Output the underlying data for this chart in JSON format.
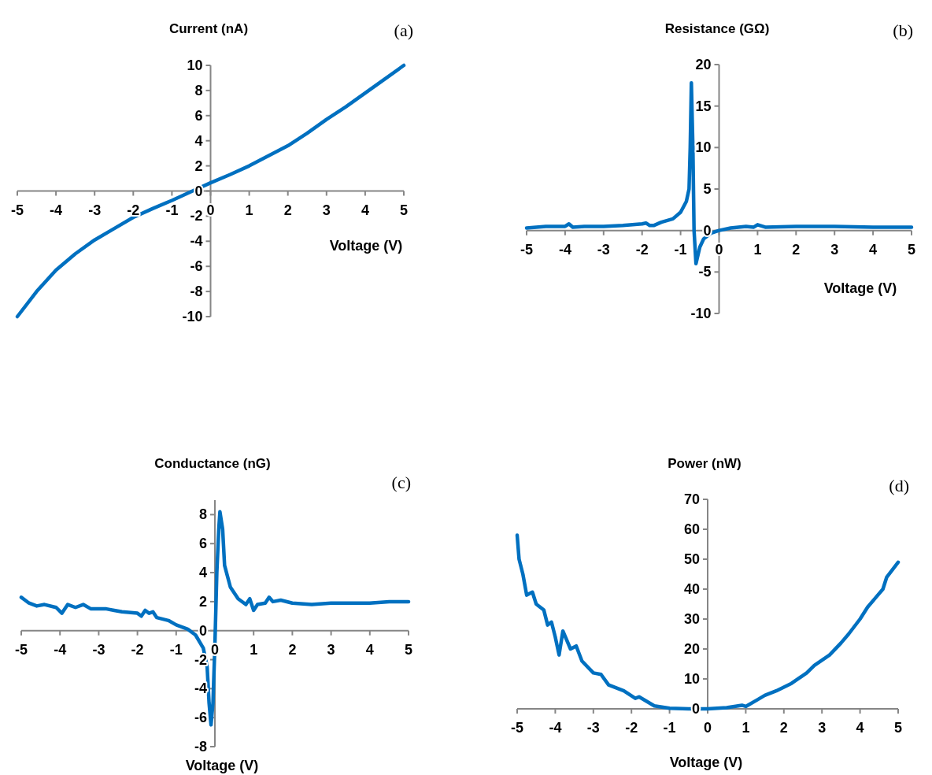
{
  "chart_data": [
    {
      "type": "line",
      "title": "Current (nA)",
      "xlabel": "Voltage (V)",
      "annotations": [
        "(a)"
      ],
      "xlim": [
        -5,
        5
      ],
      "xticks": [
        -5,
        -4,
        -3,
        -2,
        -1,
        0,
        1,
        2,
        3,
        4,
        5
      ],
      "ylim": [
        -10,
        10
      ],
      "yticks": [
        -10,
        -8,
        -6,
        -4,
        -2,
        0,
        2,
        4,
        6,
        8,
        10
      ],
      "x": [
        -5,
        -4.5,
        -4,
        -3.5,
        -3,
        -2.5,
        -2,
        -1.5,
        -1,
        -0.5,
        0,
        0.5,
        1,
        1.5,
        2,
        2.5,
        3,
        3.5,
        4,
        4.5,
        5
      ],
      "series": [
        {
          "color": "#0070c0",
          "values": [
            -10,
            -8.0,
            -6.3,
            -5.0,
            -3.9,
            -3.0,
            -2.1,
            -1.4,
            -0.75,
            -0.05,
            0.65,
            1.3,
            2.0,
            2.8,
            3.6,
            4.6,
            5.7,
            6.7,
            7.8,
            8.9,
            10
          ]
        }
      ]
    },
    {
      "type": "line",
      "title": "Resistance (GΩ)",
      "xlabel": "Voltage (V)",
      "annotations": [
        "(b)"
      ],
      "xlim": [
        -5,
        5
      ],
      "xticks": [
        -5,
        -4,
        -3,
        -2,
        -1,
        0,
        1,
        2,
        3,
        4,
        5
      ],
      "ylim": [
        -10,
        20
      ],
      "yticks": [
        -10,
        -5,
        0,
        5,
        10,
        15,
        20
      ],
      "x": [
        -5,
        -4.5,
        -4.0,
        -3.9,
        -3.8,
        -3.5,
        -3,
        -2.5,
        -2,
        -1.9,
        -1.8,
        -1.7,
        -1.5,
        -1.2,
        -1.0,
        -0.85,
        -0.78,
        -0.75,
        -0.72,
        -0.68,
        -0.65,
        -0.6,
        -0.5,
        -0.4,
        -0.2,
        0,
        0.3,
        0.7,
        0.9,
        1.0,
        1.2,
        2,
        3,
        4,
        5
      ],
      "series": [
        {
          "color": "#0070c0",
          "values": [
            0.3,
            0.5,
            0.5,
            0.8,
            0.4,
            0.5,
            0.5,
            0.6,
            0.8,
            0.9,
            0.6,
            0.6,
            1.0,
            1.4,
            2.2,
            3.5,
            5,
            10,
            17.8,
            10,
            0,
            -4.0,
            -2,
            -1.0,
            -0.3,
            0,
            0.3,
            0.5,
            0.4,
            0.7,
            0.4,
            0.5,
            0.5,
            0.4,
            0.4
          ]
        }
      ]
    },
    {
      "type": "line",
      "title": "Conductance (nG)",
      "xlabel": "Voltage (V)",
      "annotations": [
        "(c)"
      ],
      "xlim": [
        -5,
        5
      ],
      "xticks": [
        -5,
        -4,
        -3,
        -2,
        -1,
        0,
        1,
        2,
        3,
        4,
        5
      ],
      "ylim": [
        -8,
        9
      ],
      "yticks": [
        -8,
        -6,
        -4,
        -2,
        0,
        2,
        4,
        6,
        8
      ],
      "x": [
        -5,
        -4.8,
        -4.6,
        -4.4,
        -4.1,
        -3.95,
        -3.8,
        -3.6,
        -3.4,
        -3.2,
        -2.8,
        -2.6,
        -2.4,
        -2.0,
        -1.9,
        -1.8,
        -1.7,
        -1.6,
        -1.5,
        -1.2,
        -1.0,
        -0.7,
        -0.5,
        -0.3,
        -0.2,
        -0.15,
        -0.1,
        -0.05,
        0,
        0.05,
        0.1,
        0.13,
        0.2,
        0.25,
        0.4,
        0.6,
        0.8,
        0.9,
        1.0,
        1.1,
        1.3,
        1.4,
        1.5,
        1.7,
        2,
        2.5,
        3,
        3.5,
        4,
        4.5,
        5
      ],
      "series": [
        {
          "color": "#0070c0",
          "values": [
            2.3,
            1.9,
            1.7,
            1.8,
            1.6,
            1.2,
            1.8,
            1.6,
            1.8,
            1.5,
            1.5,
            1.4,
            1.3,
            1.2,
            1.0,
            1.4,
            1.2,
            1.3,
            0.9,
            0.7,
            0.4,
            0.1,
            -0.3,
            -1.2,
            -2.5,
            -5,
            -6.5,
            -5,
            -1,
            4,
            7,
            8.2,
            7,
            4.5,
            3.0,
            2.2,
            1.8,
            2.2,
            1.4,
            1.8,
            1.9,
            2.3,
            2.0,
            2.1,
            1.9,
            1.8,
            1.9,
            1.9,
            1.9,
            2.0,
            2.0
          ]
        }
      ]
    },
    {
      "type": "line",
      "title": "Power (nW)",
      "xlabel": "Voltage (V)",
      "annotations": [
        "(d)"
      ],
      "xlim": [
        -5,
        5
      ],
      "xticks": [
        -5,
        -4,
        -3,
        -2,
        -1,
        0,
        1,
        2,
        3,
        4,
        5
      ],
      "ylim": [
        0,
        70
      ],
      "yticks": [
        0,
        10,
        20,
        30,
        40,
        50,
        60,
        70
      ],
      "x": [
        -5,
        -4.95,
        -4.85,
        -4.75,
        -4.6,
        -4.5,
        -4.3,
        -4.2,
        -4.1,
        -4.0,
        -3.9,
        -3.8,
        -3.6,
        -3.45,
        -3.3,
        -3.0,
        -2.8,
        -2.6,
        -2.2,
        -1.9,
        -1.8,
        -1.6,
        -1.4,
        -1.0,
        -0.5,
        0,
        0.5,
        0.9,
        1.0,
        1.3,
        1.5,
        1.8,
        2.2,
        2.6,
        2.8,
        3.2,
        3.5,
        3.7,
        4.0,
        4.2,
        4.4,
        4.6,
        4.7,
        5
      ],
      "series": [
        {
          "color": "#0070c0",
          "values": [
            58,
            50,
            45,
            38,
            39,
            35,
            33,
            28,
            29,
            24,
            18,
            26,
            20,
            21,
            16,
            12,
            11.5,
            8,
            6,
            3.5,
            4,
            2.5,
            1,
            0.2,
            0,
            0,
            0.4,
            1.2,
            0.8,
            3,
            4.5,
            6,
            8.5,
            12,
            14.5,
            18,
            22,
            25,
            30,
            34,
            37,
            40,
            44,
            49
          ]
        }
      ]
    }
  ]
}
